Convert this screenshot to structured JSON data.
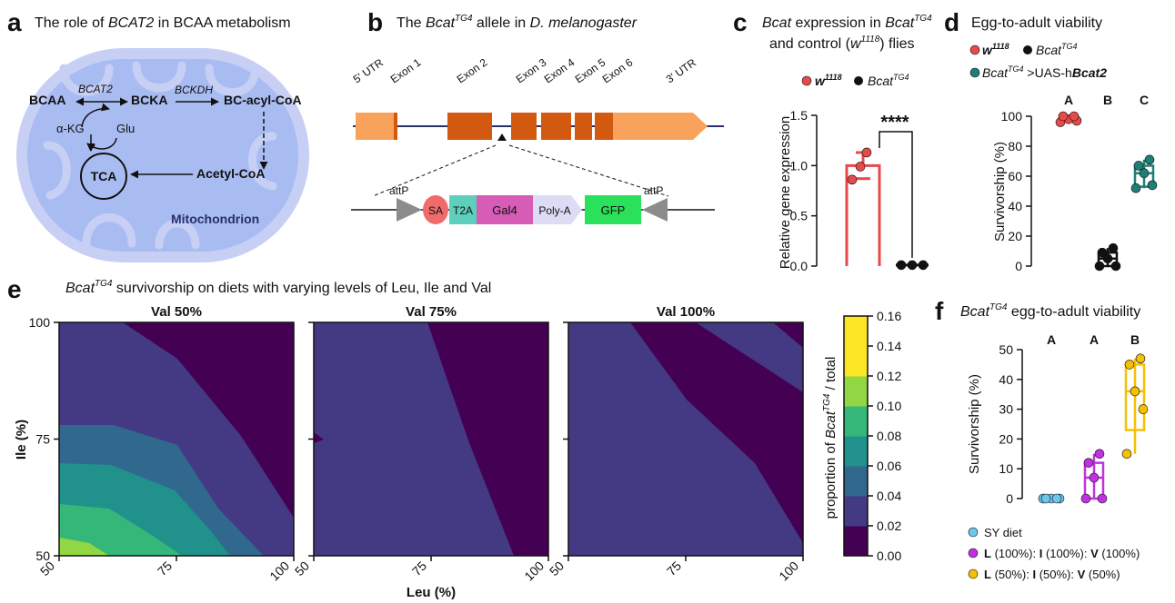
{
  "panel_a": {
    "letter": "a",
    "title_pre": "The role of ",
    "title_gene": "BCAT2",
    "title_post": " in BCAA metabolism",
    "bcaa": "BCAA",
    "bcat2": "BCAT2",
    "bcka": "BCKA",
    "bckdh": "BCKDH",
    "bcacyl": "BC-acyl-CoA",
    "akg": "α-KG",
    "glu": "Glu",
    "tca": "TCA",
    "acetyl": "Acetyl-CoA",
    "mito": "Mitochondrion",
    "colors": {
      "membrane": "#c7cff5",
      "inner": "#a9bcf2",
      "text_blue": "#27306b"
    }
  },
  "panel_b": {
    "letter": "b",
    "title_pre": "The ",
    "title_gene": "Bcat",
    "title_sup": "TG4",
    "title_mid": " allele in ",
    "title_species": "D. melanogaster",
    "utr5": "5' UTR",
    "utr3": "3' UTR",
    "exons": [
      "Exon 1",
      "Exon 2",
      "Exon 3",
      "Exon 4",
      "Exon 5",
      "Exon 6"
    ],
    "attp_left": "attP",
    "attp_right": "attP",
    "sa": "SA",
    "t2a": "T2A",
    "gal4": "Gal4",
    "polya": "Poly-A",
    "gfp": "GFP",
    "colors": {
      "utr": "#f9a25b",
      "exon": "#d2590f",
      "sa": "#f06b6b",
      "t2a": "#5fcfbd",
      "gal4": "#d65cb5",
      "polya": "#dcdcf5",
      "gfp": "#2be05a",
      "attp": "#8c8c8c"
    }
  },
  "panel_c": {
    "letter": "c",
    "title1_gene": "Bcat",
    "title1_mid": " expression in ",
    "title1_gene2": "Bcat",
    "title1_sup": "TG4",
    "title2_pre": "and control (",
    "title2_w": "w",
    "title2_sup": "1118",
    "title2_post": ") flies",
    "legend_w": "w",
    "legend_w_sup": "1118",
    "legend_b": "Bcat",
    "legend_b_sup": "TG4",
    "ylabel": "Relative gene expression",
    "yticks": [
      "0.0",
      "0.5",
      "1.0",
      "1.5"
    ],
    "significance": "****",
    "chart_data": {
      "type": "bar",
      "ylabel": "Relative gene expression",
      "ylim": [
        0,
        1.5
      ],
      "categories": [
        "w1118",
        "BcatTG4"
      ],
      "values": [
        1.0,
        0.01
      ],
      "errors": [
        0.13,
        0.005
      ],
      "points": [
        [
          1.13,
          0.86,
          0.99
        ],
        [
          0.01,
          0.01,
          0.01
        ]
      ],
      "colors": [
        "#e84a4a",
        "#111111"
      ]
    }
  },
  "panel_d": {
    "letter": "d",
    "title": "Egg-to-adult viability",
    "legend_w": "w",
    "legend_w_sup": "1118",
    "legend_b": "Bcat",
    "legend_b_sup": "TG4",
    "legend_r_gene": "Bcat",
    "legend_r_sup": "TG4",
    "legend_r_mid": " >UAS-h",
    "legend_r_tail": "Bcat2",
    "ylabel": "Survivorship (%)",
    "yticks": [
      "0",
      "20",
      "40",
      "60",
      "80",
      "100"
    ],
    "letters": [
      "A",
      "B",
      "C"
    ],
    "chart_data": {
      "type": "box",
      "ylabel": "Survivorship (%)",
      "ylim": [
        0,
        100
      ],
      "groups": [
        {
          "color": "#e84a4a",
          "median": 98,
          "q1": 97,
          "q3": 100,
          "min": 96,
          "max": 100,
          "points": [
            96,
            97,
            98,
            100,
            100
          ]
        },
        {
          "color": "#111111",
          "median": 5,
          "q1": 0,
          "q3": 9,
          "min": 0,
          "max": 12,
          "points": [
            0,
            0,
            5,
            9,
            12
          ]
        },
        {
          "color": "#1f7f76",
          "median": 62,
          "q1": 53,
          "q3": 67,
          "min": 52,
          "max": 71,
          "points": [
            52,
            54,
            62,
            67,
            71
          ]
        }
      ]
    }
  },
  "panel_e": {
    "letter": "e",
    "title_gene": "Bcat",
    "title_sup": "TG4",
    "title_post": " survivorship on diets with varying levels of Leu, Ile and Val",
    "xlabel": "Leu (%)",
    "ylabel": "Ile (%)",
    "xticks": [
      "50",
      "75",
      "100"
    ],
    "yticks": [
      "50",
      "75",
      "100"
    ],
    "subtitles": [
      "Val 50%",
      "Val 75%",
      "Val 100%"
    ],
    "colorbar_label_pre": "proportion of ",
    "colorbar_label_gene": "Bcat",
    "colorbar_label_sup": "TG4",
    "colorbar_label_post": " / total",
    "colorbar_ticks": [
      "0.00",
      "0.02",
      "0.04",
      "0.06",
      "0.08",
      "0.10",
      "0.12",
      "0.14",
      "0.16"
    ],
    "chart_data": {
      "type": "contour",
      "x_range": [
        50,
        100
      ],
      "y_range": [
        50,
        100
      ],
      "levels": [
        0,
        0.02,
        0.04,
        0.06,
        0.08,
        0.1,
        0.12,
        0.14,
        0.16
      ],
      "level_colors": [
        "#440154",
        "#443983",
        "#31688e",
        "#21918c",
        "#35b779",
        "#90d743",
        "#fde725",
        "#fde725"
      ],
      "panels": [
        "Val 50%",
        "Val 75%",
        "Val 100%"
      ]
    }
  },
  "panel_f": {
    "letter": "f",
    "title_gene": "Bcat",
    "title_sup": "TG4",
    "title_post": " egg-to-adult viability",
    "ylabel": "Survivorship (%)",
    "yticks": [
      "0",
      "10",
      "20",
      "30",
      "40",
      "50"
    ],
    "letters": [
      "A",
      "A",
      "B"
    ],
    "legend": [
      {
        "l": "",
        "lv": "",
        "i": "",
        "iv": "",
        "v": "",
        "vv": "",
        "plain": "SY diet"
      },
      {
        "l": "L",
        "lv": " (100%): ",
        "i": "I",
        "iv": " (100%): ",
        "v": "V",
        "vv": " (100%)",
        "plain": ""
      },
      {
        "l": "L",
        "lv": " (50%): ",
        "i": "I",
        "iv": " (50%): ",
        "v": "V",
        "vv": " (50%)",
        "plain": ""
      }
    ],
    "chart_data": {
      "type": "box",
      "ylabel": "Survivorship (%)",
      "ylim": [
        0,
        50
      ],
      "groups": [
        {
          "name": "SY diet",
          "color": "#6ec6ec",
          "median": 0,
          "q1": 0,
          "q3": 0,
          "min": 0,
          "max": 0,
          "points": [
            0,
            0,
            0,
            0,
            0
          ]
        },
        {
          "name": "L (100%): I (100%): V (100%)",
          "color": "#c032e0",
          "median": 7,
          "q1": 0,
          "q3": 12,
          "min": 0,
          "max": 15,
          "points": [
            0,
            0,
            7,
            12,
            15
          ]
        },
        {
          "name": "L (50%): I (50%): V (50%)",
          "color": "#f5c000",
          "median": 36,
          "q1": 23,
          "q3": 45,
          "min": 15,
          "max": 47,
          "points": [
            15,
            30,
            36,
            45,
            47
          ]
        }
      ]
    }
  }
}
